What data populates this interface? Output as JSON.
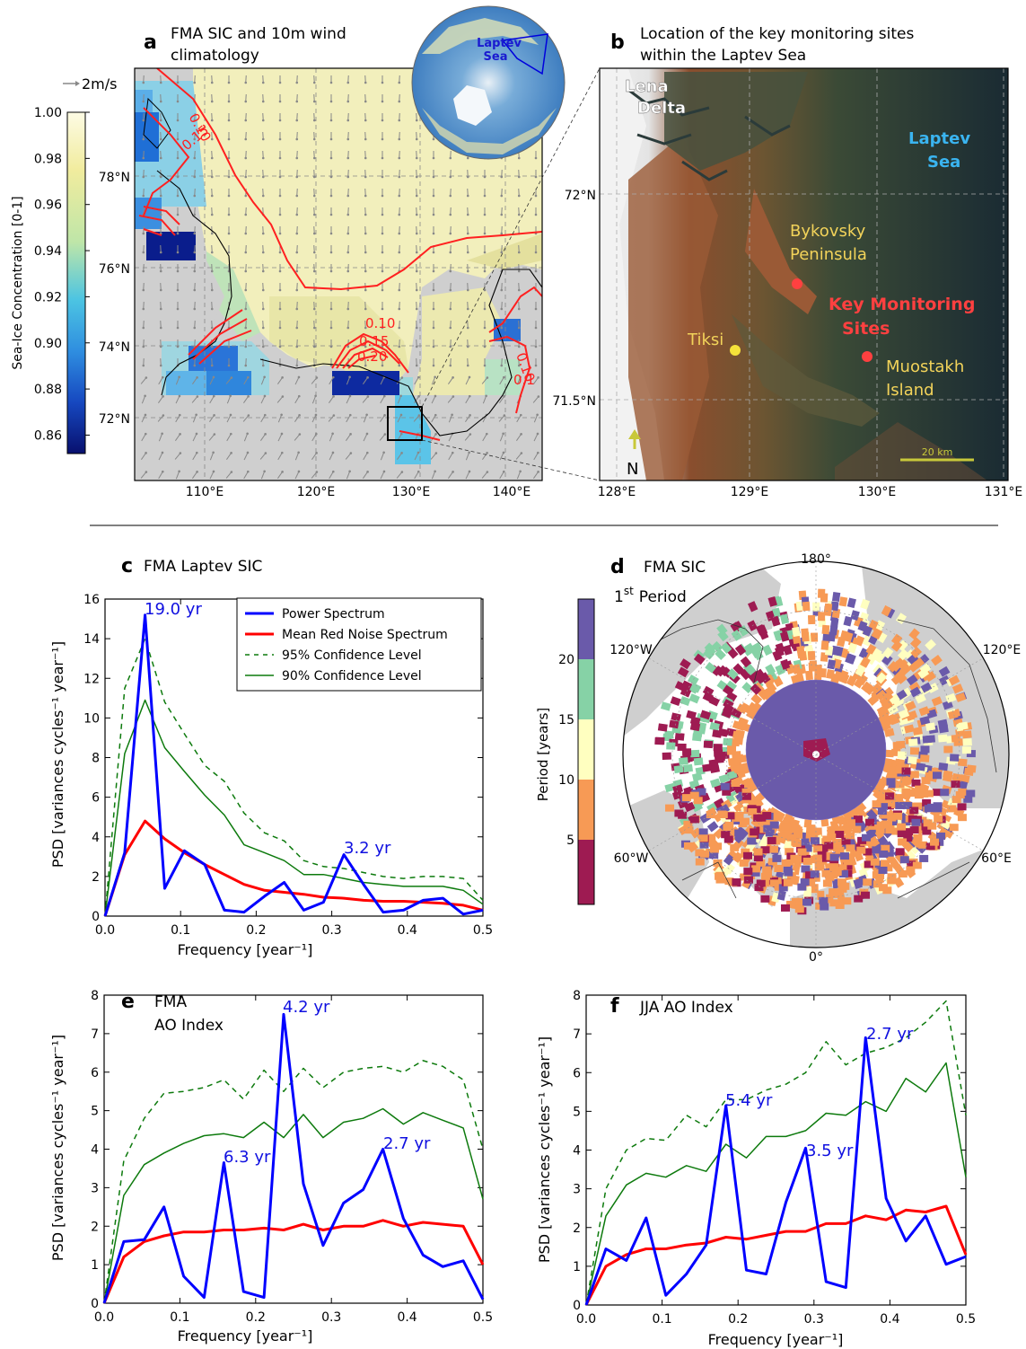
{
  "panels": {
    "a": {
      "letter": "a",
      "title_line1": "FMA SIC and 10m wind",
      "title_line2": "climatology",
      "wind_ref": "2m/s",
      "colorbar_label": "Sea-Ice Concentration [0-1]",
      "colorbar_ticks": [
        "1.00",
        "0.98",
        "0.96",
        "0.94",
        "0.92",
        "0.90",
        "0.88",
        "0.86"
      ],
      "lat_labels": [
        "78°N",
        "76°N",
        "74°N",
        "72°N"
      ],
      "lon_labels": [
        "110°E",
        "120°E",
        "130°E",
        "140°E"
      ],
      "contour_labels": [
        "0.10",
        "0.15",
        "0.10",
        "0.15",
        "0.20",
        "0.10",
        "0.1"
      ],
      "inset_label_line1": "Laptev",
      "inset_label_line2": "Sea"
    },
    "b": {
      "letter": "b",
      "title_line1": "Location of the key monitoring sites",
      "title_line2": "within the Laptev Sea",
      "lena_line1": "Lena",
      "lena_line2": "Delta",
      "laptev_line1": "Laptev",
      "laptev_line2": "Sea",
      "bykovsky_line1": "Bykovsky",
      "bykovsky_line2": "Peninsula",
      "key_line1": "Key Monitoring",
      "key_line2": "Sites",
      "tiksi": "Tiksi",
      "muostakh_line1": "Muostakh",
      "muostakh_line2": "Island",
      "north": "N",
      "scale": "20 km",
      "lat_labels": [
        "72°N",
        "71.5°N"
      ],
      "lon_labels": [
        "128°E",
        "129°E",
        "130°E",
        "131°E"
      ]
    },
    "c": {
      "letter": "c",
      "title": "FMA Laptev SIC",
      "ylabel": "PSD [variances cycles⁻¹ year⁻¹]",
      "xlabel": "Frequency [year⁻¹]",
      "annotations": [
        "19.0 yr",
        "3.2 yr"
      ],
      "legend": [
        "Power Spectrum",
        "Mean Red Noise Spectrum",
        "95% Confidence Level",
        "90% Confidence Level"
      ]
    },
    "d": {
      "letter": "d",
      "title": "FMA SIC",
      "subtitle_prefix": "1",
      "subtitle_sup": "st",
      "subtitle_suffix": "Period",
      "colorbar_label": "Period [years]",
      "colorbar_ticks": [
        "20",
        "15",
        "10",
        "5"
      ],
      "lon_labels": [
        "180°",
        "120°W",
        "120°E",
        "60°W",
        "60°E",
        "0°"
      ]
    },
    "e": {
      "letter": "e",
      "title_line1": "FMA",
      "title_line2": "AO Index",
      "ylabel": "PSD [variances cycles⁻¹ year⁻¹]",
      "xlabel": "Frequency [year⁻¹]",
      "annotations": [
        "4.2 yr",
        "6.3 yr",
        "2.7 yr"
      ]
    },
    "f": {
      "letter": "f",
      "title": "JJA AO Index",
      "ylabel": "PSD [variances cycles⁻¹ year⁻¹]",
      "xlabel": "Frequency [year⁻¹]",
      "annotations": [
        "2.7 yr",
        "5.4 yr",
        "3.5 yr"
      ]
    }
  },
  "colors": {
    "power": "#0000ff",
    "red_noise": "#ff0000",
    "confidence": "#0d7a0d",
    "land": "#cfcfcf",
    "ice_high": "#f4f0c0",
    "period_colors": [
      "#9e1b52",
      "#f79a55",
      "#ffffc0",
      "#86d2a6",
      "#6a5aaa"
    ]
  },
  "chart_data": [
    {
      "panel": "c",
      "type": "line",
      "xlim": [
        0,
        0.5
      ],
      "ylim": [
        0,
        16
      ],
      "xticks": [
        "0.0",
        "0.1",
        "0.2",
        "0.3",
        "0.4",
        "0.5"
      ],
      "yticks": [
        "0",
        "2",
        "4",
        "6",
        "8",
        "10",
        "12",
        "14",
        "16"
      ],
      "legend_position": "top-right",
      "series": [
        {
          "name": "Power Spectrum",
          "x": [
            0,
            0.026,
            0.053,
            0.079,
            0.105,
            0.132,
            0.158,
            0.184,
            0.211,
            0.237,
            0.263,
            0.289,
            0.316,
            0.342,
            0.368,
            0.395,
            0.421,
            0.447,
            0.474,
            0.5
          ],
          "y": [
            0,
            3.2,
            15.2,
            1.4,
            3.3,
            2.6,
            0.3,
            0.2,
            1.0,
            1.7,
            0.3,
            0.7,
            3.1,
            1.6,
            0.2,
            0.3,
            0.8,
            0.9,
            0.1,
            0.3
          ]
        },
        {
          "name": "Mean Red Noise Spectrum",
          "x": [
            0,
            0.026,
            0.053,
            0.079,
            0.105,
            0.132,
            0.158,
            0.184,
            0.211,
            0.237,
            0.263,
            0.289,
            0.316,
            0.342,
            0.368,
            0.395,
            0.421,
            0.447,
            0.474,
            0.5
          ],
          "y": [
            0,
            3.1,
            4.8,
            3.9,
            3.2,
            2.6,
            2.1,
            1.6,
            1.3,
            1.2,
            1.1,
            0.95,
            0.9,
            0.8,
            0.75,
            0.75,
            0.7,
            0.65,
            0.55,
            0.3
          ]
        },
        {
          "name": "95% Confidence Level",
          "x": [
            0,
            0.026,
            0.053,
            0.079,
            0.105,
            0.132,
            0.158,
            0.184,
            0.211,
            0.237,
            0.263,
            0.289,
            0.316,
            0.342,
            0.368,
            0.395,
            0.421,
            0.447,
            0.474,
            0.5
          ],
          "y": [
            0,
            11.5,
            14.0,
            10.8,
            9.2,
            7.6,
            6.8,
            5.2,
            4.2,
            3.8,
            2.8,
            2.5,
            2.4,
            2.2,
            2.0,
            1.9,
            2.0,
            2.0,
            1.9,
            0.8
          ]
        },
        {
          "name": "90% Confidence Level",
          "x": [
            0,
            0.026,
            0.053,
            0.079,
            0.105,
            0.132,
            0.158,
            0.184,
            0.211,
            0.237,
            0.263,
            0.289,
            0.316,
            0.342,
            0.368,
            0.395,
            0.421,
            0.447,
            0.474,
            0.5
          ],
          "y": [
            0,
            8.2,
            10.9,
            8.5,
            7.3,
            6.1,
            5.1,
            3.6,
            3.2,
            2.8,
            2.1,
            2.1,
            1.9,
            1.7,
            1.6,
            1.5,
            1.5,
            1.5,
            1.3,
            0.6
          ]
        }
      ]
    },
    {
      "panel": "e",
      "type": "line",
      "xlim": [
        0,
        0.5
      ],
      "ylim": [
        0,
        8
      ],
      "xticks": [
        "0.0",
        "0.1",
        "0.2",
        "0.3",
        "0.4",
        "0.5"
      ],
      "yticks": [
        "0",
        "1",
        "2",
        "3",
        "4",
        "5",
        "6",
        "7",
        "8"
      ],
      "series": [
        {
          "name": "Power Spectrum",
          "x": [
            0,
            0.026,
            0.053,
            0.079,
            0.105,
            0.132,
            0.158,
            0.184,
            0.211,
            0.237,
            0.263,
            0.289,
            0.316,
            0.342,
            0.368,
            0.395,
            0.421,
            0.447,
            0.474,
            0.5
          ],
          "y": [
            0,
            1.6,
            1.65,
            2.5,
            0.7,
            0.15,
            3.65,
            0.3,
            0.15,
            7.5,
            3.1,
            1.5,
            2.6,
            2.95,
            4.0,
            2.2,
            1.25,
            0.95,
            1.1,
            0.1
          ]
        },
        {
          "name": "Mean Red Noise Spectrum",
          "x": [
            0,
            0.026,
            0.053,
            0.079,
            0.105,
            0.132,
            0.158,
            0.184,
            0.211,
            0.237,
            0.263,
            0.289,
            0.316,
            0.342,
            0.368,
            0.395,
            0.421,
            0.447,
            0.474,
            0.5
          ],
          "y": [
            0,
            1.2,
            1.6,
            1.75,
            1.85,
            1.85,
            1.9,
            1.9,
            1.95,
            1.9,
            2.05,
            1.9,
            2.0,
            2.0,
            2.15,
            2.0,
            2.1,
            2.05,
            2.0,
            1.0
          ]
        },
        {
          "name": "95% Confidence Level",
          "x": [
            0,
            0.026,
            0.053,
            0.079,
            0.105,
            0.132,
            0.158,
            0.184,
            0.211,
            0.237,
            0.263,
            0.289,
            0.316,
            0.342,
            0.368,
            0.395,
            0.421,
            0.447,
            0.474,
            0.5
          ],
          "y": [
            0,
            3.7,
            4.8,
            5.45,
            5.5,
            5.6,
            5.8,
            5.3,
            6.05,
            5.5,
            6.1,
            5.6,
            6.0,
            6.1,
            6.15,
            6.0,
            6.3,
            6.15,
            5.8,
            4.0
          ]
        },
        {
          "name": "90% Confidence Level",
          "x": [
            0,
            0.026,
            0.053,
            0.079,
            0.105,
            0.132,
            0.158,
            0.184,
            0.211,
            0.237,
            0.263,
            0.289,
            0.316,
            0.342,
            0.368,
            0.395,
            0.421,
            0.447,
            0.474,
            0.5
          ],
          "y": [
            0,
            2.8,
            3.6,
            3.9,
            4.15,
            4.35,
            4.4,
            4.3,
            4.7,
            4.3,
            4.9,
            4.3,
            4.7,
            4.8,
            5.05,
            4.65,
            4.95,
            4.75,
            4.55,
            2.7
          ]
        }
      ]
    },
    {
      "panel": "f",
      "type": "line",
      "xlim": [
        0,
        0.5
      ],
      "ylim": [
        0,
        8
      ],
      "xticks": [
        "0.0",
        "0.1",
        "0.2",
        "0.3",
        "0.4",
        "0.5"
      ],
      "yticks": [
        "0",
        "1",
        "2",
        "3",
        "4",
        "5",
        "6",
        "7",
        "8"
      ],
      "series": [
        {
          "name": "Power Spectrum",
          "x": [
            0,
            0.026,
            0.053,
            0.079,
            0.105,
            0.132,
            0.158,
            0.184,
            0.211,
            0.237,
            0.263,
            0.289,
            0.316,
            0.342,
            0.368,
            0.395,
            0.421,
            0.447,
            0.474,
            0.5
          ],
          "y": [
            0,
            1.45,
            1.15,
            2.25,
            0.25,
            0.8,
            1.55,
            5.15,
            0.9,
            0.8,
            2.65,
            4.05,
            0.6,
            0.45,
            6.9,
            2.75,
            1.65,
            2.3,
            1.05,
            1.25
          ]
        },
        {
          "name": "Mean Red Noise Spectrum",
          "x": [
            0,
            0.026,
            0.053,
            0.079,
            0.105,
            0.132,
            0.158,
            0.184,
            0.211,
            0.237,
            0.263,
            0.289,
            0.316,
            0.342,
            0.368,
            0.395,
            0.421,
            0.447,
            0.474,
            0.5
          ],
          "y": [
            0,
            1.0,
            1.3,
            1.45,
            1.45,
            1.55,
            1.6,
            1.75,
            1.7,
            1.8,
            1.9,
            1.9,
            2.1,
            2.1,
            2.3,
            2.2,
            2.45,
            2.4,
            2.55,
            1.3
          ]
        },
        {
          "name": "95% Confidence Level",
          "x": [
            0,
            0.026,
            0.053,
            0.079,
            0.105,
            0.132,
            0.158,
            0.184,
            0.211,
            0.237,
            0.263,
            0.289,
            0.316,
            0.342,
            0.368,
            0.395,
            0.421,
            0.447,
            0.474,
            0.5
          ],
          "y": [
            0,
            3.0,
            4.0,
            4.3,
            4.25,
            4.9,
            4.6,
            5.3,
            5.3,
            5.55,
            5.7,
            6.0,
            6.8,
            6.2,
            6.5,
            6.65,
            6.9,
            7.3,
            7.85,
            4.9
          ]
        },
        {
          "name": "90% Confidence Level",
          "x": [
            0,
            0.026,
            0.053,
            0.079,
            0.105,
            0.132,
            0.158,
            0.184,
            0.211,
            0.237,
            0.263,
            0.289,
            0.316,
            0.342,
            0.368,
            0.395,
            0.421,
            0.447,
            0.474,
            0.5
          ],
          "y": [
            0,
            2.3,
            3.1,
            3.4,
            3.3,
            3.6,
            3.45,
            4.15,
            3.8,
            4.35,
            4.35,
            4.5,
            4.95,
            4.9,
            5.25,
            5.0,
            5.85,
            5.5,
            6.25,
            3.3
          ]
        }
      ]
    }
  ]
}
